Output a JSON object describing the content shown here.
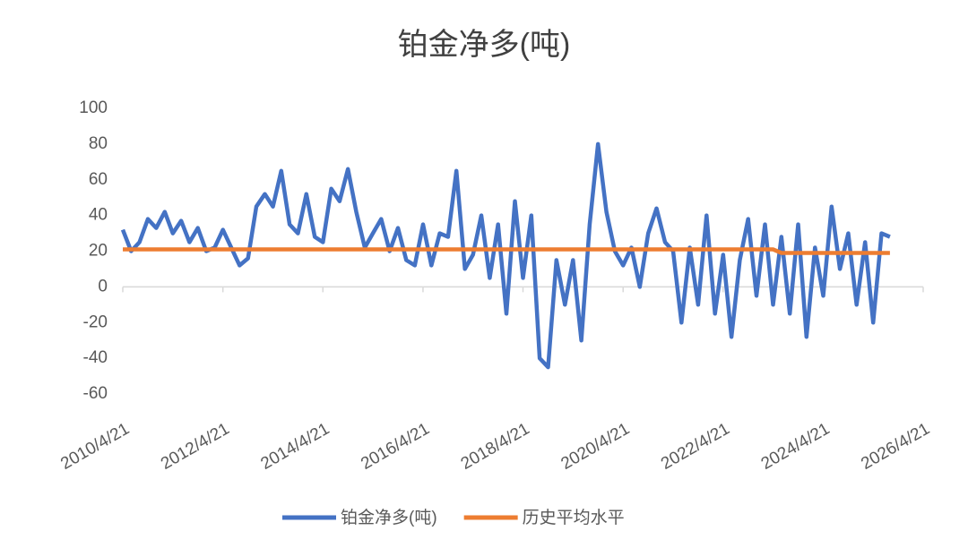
{
  "chart_data": {
    "type": "line",
    "title": "铂金净多(吨)",
    "x": [
      "2010/4/21",
      "2010/6/21",
      "2010/8/21",
      "2010/10/21",
      "2010/12/21",
      "2011/2/21",
      "2011/4/21",
      "2011/6/21",
      "2011/8/21",
      "2011/10/21",
      "2011/12/21",
      "2012/2/21",
      "2012/4/21",
      "2012/6/21",
      "2012/8/21",
      "2012/10/21",
      "2012/12/21",
      "2013/2/21",
      "2013/4/21",
      "2013/6/21",
      "2013/8/21",
      "2013/10/21",
      "2013/12/21",
      "2014/2/21",
      "2014/4/21",
      "2014/6/21",
      "2014/8/21",
      "2014/10/21",
      "2014/12/21",
      "2015/2/21",
      "2015/4/21",
      "2015/6/21",
      "2015/8/21",
      "2015/10/21",
      "2015/12/21",
      "2016/2/21",
      "2016/4/21",
      "2016/6/21",
      "2016/8/21",
      "2016/10/21",
      "2016/12/21",
      "2017/2/21",
      "2017/4/21",
      "2017/6/21",
      "2017/8/21",
      "2017/10/21",
      "2017/12/21",
      "2018/2/21",
      "2018/4/21",
      "2018/6/21",
      "2018/8/21",
      "2018/10/21",
      "2018/12/21",
      "2019/2/21",
      "2019/4/21",
      "2019/6/21",
      "2019/8/21",
      "2019/10/21",
      "2019/12/21",
      "2020/2/21",
      "2020/4/21",
      "2020/6/21",
      "2020/8/21",
      "2020/10/21",
      "2020/12/21",
      "2021/2/21",
      "2021/4/21",
      "2021/6/21",
      "2021/8/21",
      "2021/10/21",
      "2021/12/21",
      "2022/2/21",
      "2022/4/21",
      "2022/6/21",
      "2022/8/21",
      "2022/10/21",
      "2022/12/21",
      "2023/2/21",
      "2023/4/21",
      "2023/6/21",
      "2023/8/21",
      "2023/10/21",
      "2023/12/21",
      "2024/2/21",
      "2024/4/21",
      "2024/6/21",
      "2024/8/21",
      "2024/10/21",
      "2024/12/21",
      "2025/2/21",
      "2025/4/21",
      "2025/6/21",
      "2025/8/21"
    ],
    "series": [
      {
        "name": "铂金净多(吨)",
        "color": "#4472c4",
        "values": [
          32,
          20,
          25,
          38,
          33,
          42,
          30,
          37,
          25,
          33,
          20,
          22,
          32,
          22,
          12,
          16,
          45,
          52,
          45,
          65,
          35,
          30,
          52,
          28,
          25,
          55,
          48,
          66,
          42,
          22,
          30,
          38,
          20,
          33,
          15,
          12,
          35,
          12,
          30,
          28,
          65,
          10,
          18,
          40,
          5,
          35,
          -15,
          48,
          5,
          40,
          -40,
          -45,
          15,
          -10,
          15,
          -30,
          35,
          80,
          42,
          20,
          12,
          22,
          0,
          30,
          44,
          25,
          20,
          -20,
          22,
          -10,
          40,
          -15,
          18,
          -28,
          15,
          38,
          -5,
          35,
          -10,
          28,
          -15,
          35,
          -28,
          22,
          -5,
          45,
          10,
          30,
          -10,
          25,
          -20,
          30,
          28
        ]
      },
      {
        "name": "历史平均水平",
        "color": "#ed7d31",
        "values": [
          21,
          21,
          21,
          21,
          21,
          21,
          21,
          21,
          21,
          21,
          21,
          21,
          21,
          21,
          21,
          21,
          21,
          21,
          21,
          21,
          21,
          21,
          21,
          21,
          21,
          21,
          21,
          21,
          21,
          21,
          21,
          21,
          21,
          21,
          21,
          21,
          21,
          21,
          21,
          21,
          21,
          21,
          21,
          21,
          21,
          21,
          21,
          21,
          21,
          21,
          21,
          21,
          21,
          21,
          21,
          21,
          21,
          21,
          21,
          21,
          21,
          21,
          21,
          21,
          21,
          21,
          21,
          21,
          21,
          21,
          21,
          21,
          21,
          21,
          21,
          21,
          21,
          21,
          21,
          19,
          19,
          19,
          19,
          19,
          19,
          19,
          19,
          19,
          19,
          19,
          19,
          19,
          19
        ]
      }
    ],
    "xlim": [
      "2010/4/21",
      "2026/4/21"
    ],
    "xticks": [
      "2010/4/21",
      "2012/4/21",
      "2014/4/21",
      "2016/4/21",
      "2018/4/21",
      "2020/4/21",
      "2022/4/21",
      "2024/4/21",
      "2026/4/21"
    ],
    "ylim": [
      -60,
      100
    ],
    "yticks": [
      -60,
      -40,
      -20,
      0,
      20,
      40,
      60,
      80,
      100
    ]
  }
}
